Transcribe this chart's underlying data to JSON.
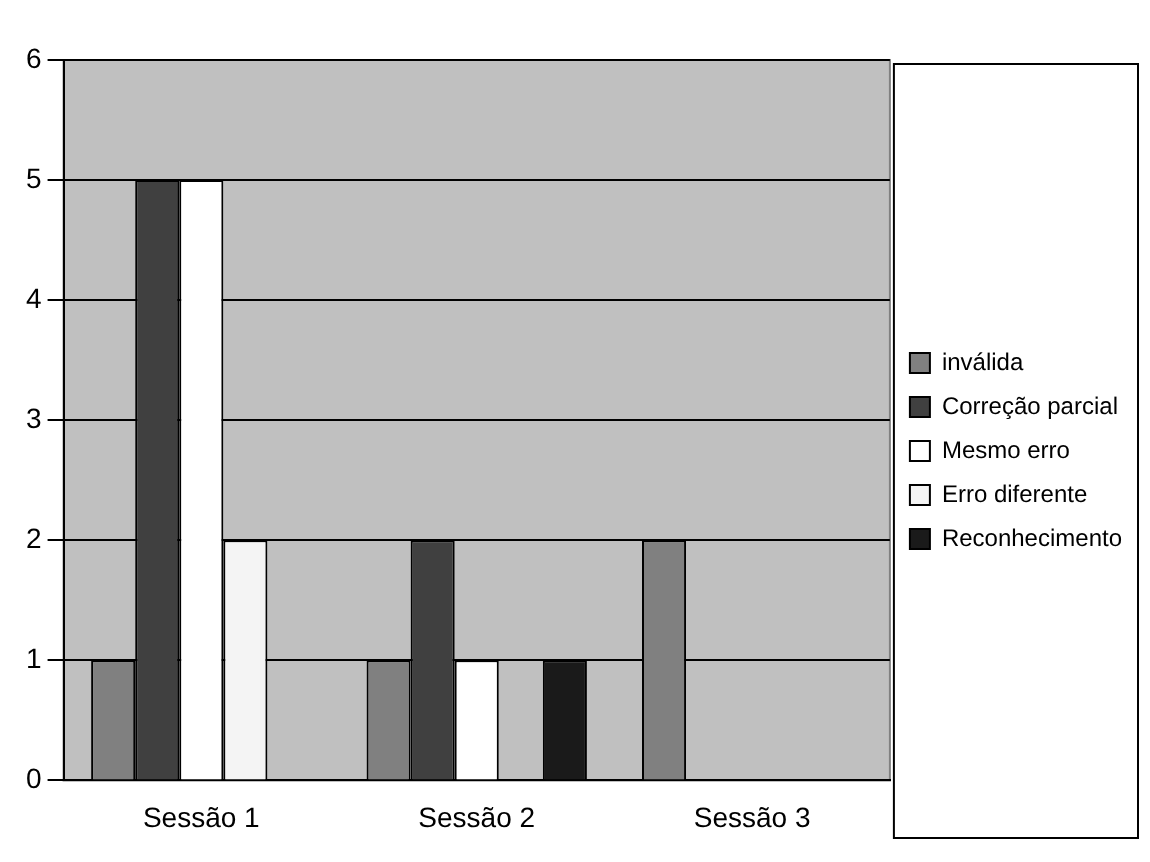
{
  "chart_data": {
    "type": "bar",
    "categories": [
      "Sessão 1",
      "Sessão 2",
      "Sessão 3"
    ],
    "series": [
      {
        "name": "inválida",
        "color": "#808080",
        "values": [
          1,
          1,
          2
        ]
      },
      {
        "name": "Correção parcial",
        "color": "#404040",
        "values": [
          5,
          2,
          0
        ]
      },
      {
        "name": "Mesmo erro",
        "color": "#ffffff",
        "values": [
          5,
          1,
          0
        ]
      },
      {
        "name": "Erro diferente",
        "color": "#f4f4f4",
        "values": [
          2,
          0,
          0
        ]
      },
      {
        "name": "Reconhecimento",
        "color": "#1a1a1a",
        "values": [
          0,
          1,
          0
        ]
      }
    ],
    "ylim": [
      0,
      6
    ],
    "yticks": [
      0,
      1,
      2,
      3,
      4,
      5,
      6
    ],
    "grid": "y",
    "legend": "right"
  }
}
